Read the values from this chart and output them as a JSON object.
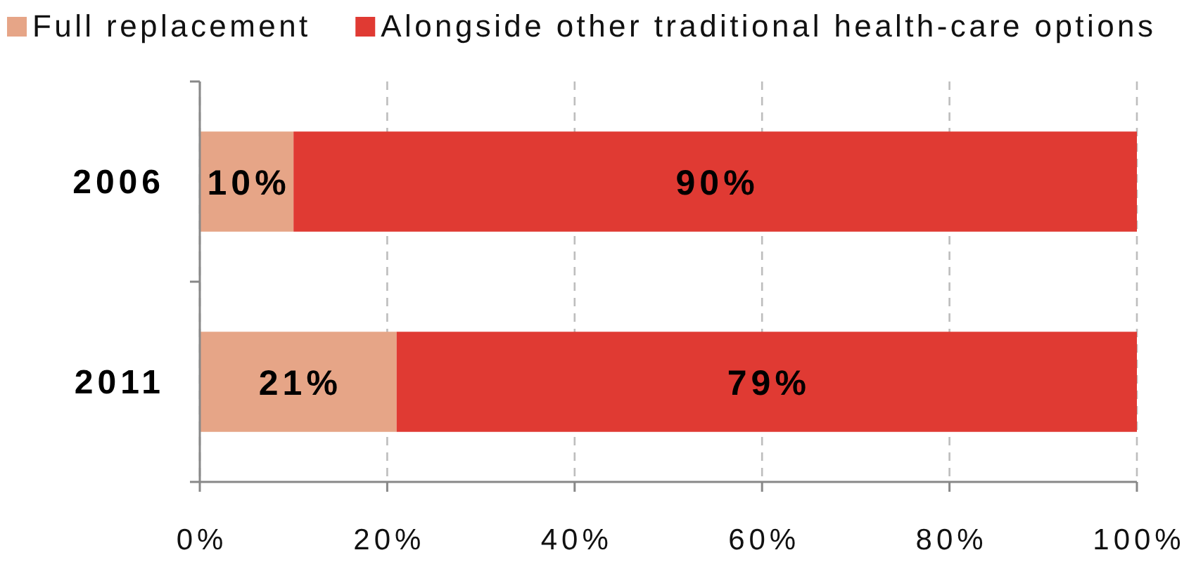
{
  "chart_data": {
    "type": "bar",
    "orientation": "horizontal",
    "stacked": true,
    "categories": [
      "2006",
      "2011"
    ],
    "series": [
      {
        "name": "Full replacement",
        "color": "#e6a587",
        "values": [
          10,
          21
        ],
        "value_labels": [
          "10%",
          "21%"
        ]
      },
      {
        "name": "Alongside other traditional health-care options",
        "color": "#e03a33",
        "values": [
          90,
          79
        ],
        "value_labels": [
          "90%",
          "79%"
        ]
      }
    ],
    "xlim": [
      0,
      100
    ],
    "xticks": [
      {
        "value": 0,
        "label": "0%"
      },
      {
        "value": 20,
        "label": "20%"
      },
      {
        "value": 40,
        "label": "40%"
      },
      {
        "value": 60,
        "label": "60%"
      },
      {
        "value": 80,
        "label": "80%"
      },
      {
        "value": 100,
        "label": "100%"
      }
    ],
    "grid": "x",
    "legend": "top"
  }
}
